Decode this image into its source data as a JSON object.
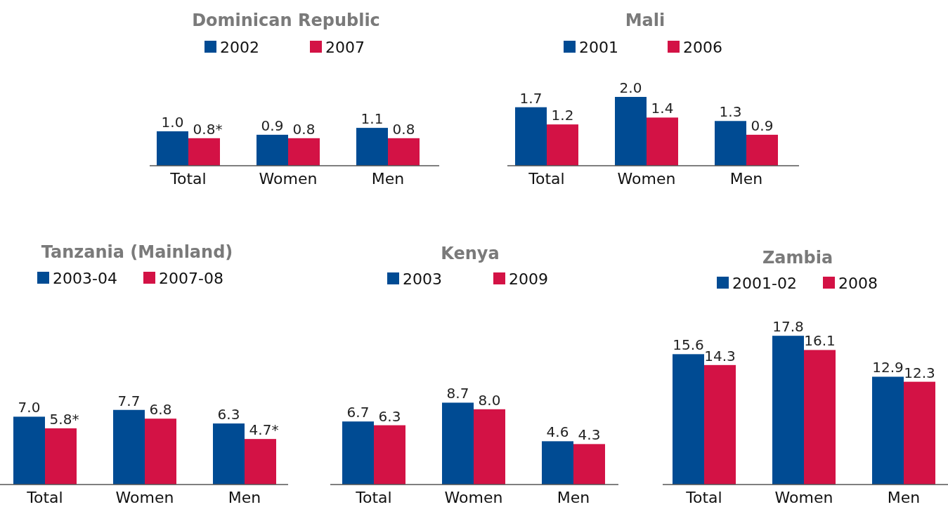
{
  "chart_data": [
    {
      "type": "bar",
      "title": "Dominican Republic",
      "categories": [
        "Total",
        "Women",
        "Men"
      ],
      "legend": "top",
      "series": [
        {
          "name": "2002",
          "color": "#004b93",
          "values": [
            1.0,
            0.9,
            1.1
          ],
          "value_labels": [
            "1.0",
            "0.9",
            "1.1"
          ]
        },
        {
          "name": "2007",
          "color": "#d31245",
          "values": [
            0.8,
            0.8,
            0.8
          ],
          "value_labels": [
            "0.8*",
            "0.8",
            "0.8"
          ]
        }
      ]
    },
    {
      "type": "bar",
      "title": "Mali",
      "categories": [
        "Total",
        "Women",
        "Men"
      ],
      "legend": "top",
      "series": [
        {
          "name": "2001",
          "color": "#004b93",
          "values": [
            1.7,
            2.0,
            1.3
          ],
          "value_labels": [
            "1.7",
            "2.0",
            "1.3"
          ]
        },
        {
          "name": "2006",
          "color": "#d31245",
          "values": [
            1.2,
            1.4,
            0.9
          ],
          "value_labels": [
            "1.2",
            "1.4",
            "0.9"
          ]
        }
      ]
    },
    {
      "type": "bar",
      "title": "Tanzania (Mainland)",
      "categories": [
        "Total",
        "Women",
        "Men"
      ],
      "legend": "top",
      "series": [
        {
          "name": "2003-04",
          "color": "#004b93",
          "values": [
            7.0,
            7.7,
            6.3
          ],
          "value_labels": [
            "7.0",
            "7.7",
            "6.3"
          ]
        },
        {
          "name": "2007-08",
          "color": "#d31245",
          "values": [
            5.8,
            6.8,
            4.7
          ],
          "value_labels": [
            "5.8*",
            "6.8",
            "4.7*"
          ]
        }
      ]
    },
    {
      "type": "bar",
      "title": "Kenya",
      "categories": [
        "Total",
        "Women",
        "Men"
      ],
      "legend": "top",
      "series": [
        {
          "name": "2003",
          "color": "#004b93",
          "values": [
            6.7,
            8.7,
            4.6
          ],
          "value_labels": [
            "6.7",
            "8.7",
            "4.6"
          ]
        },
        {
          "name": "2009",
          "color": "#d31245",
          "values": [
            6.3,
            8.0,
            4.3
          ],
          "value_labels": [
            "6.3",
            "8.0",
            "4.3"
          ]
        }
      ]
    },
    {
      "type": "bar",
      "title": "Zambia",
      "categories": [
        "Total",
        "Women",
        "Men"
      ],
      "legend": "top",
      "series": [
        {
          "name": "2001-02",
          "color": "#004b93",
          "values": [
            15.6,
            17.8,
            12.9
          ],
          "value_labels": [
            "15.6",
            "17.8",
            "12.9"
          ]
        },
        {
          "name": "2008",
          "color": "#d31245",
          "values": [
            14.3,
            16.1,
            12.3
          ],
          "value_labels": [
            "14.3",
            "16.1",
            "12.3"
          ]
        }
      ]
    }
  ]
}
